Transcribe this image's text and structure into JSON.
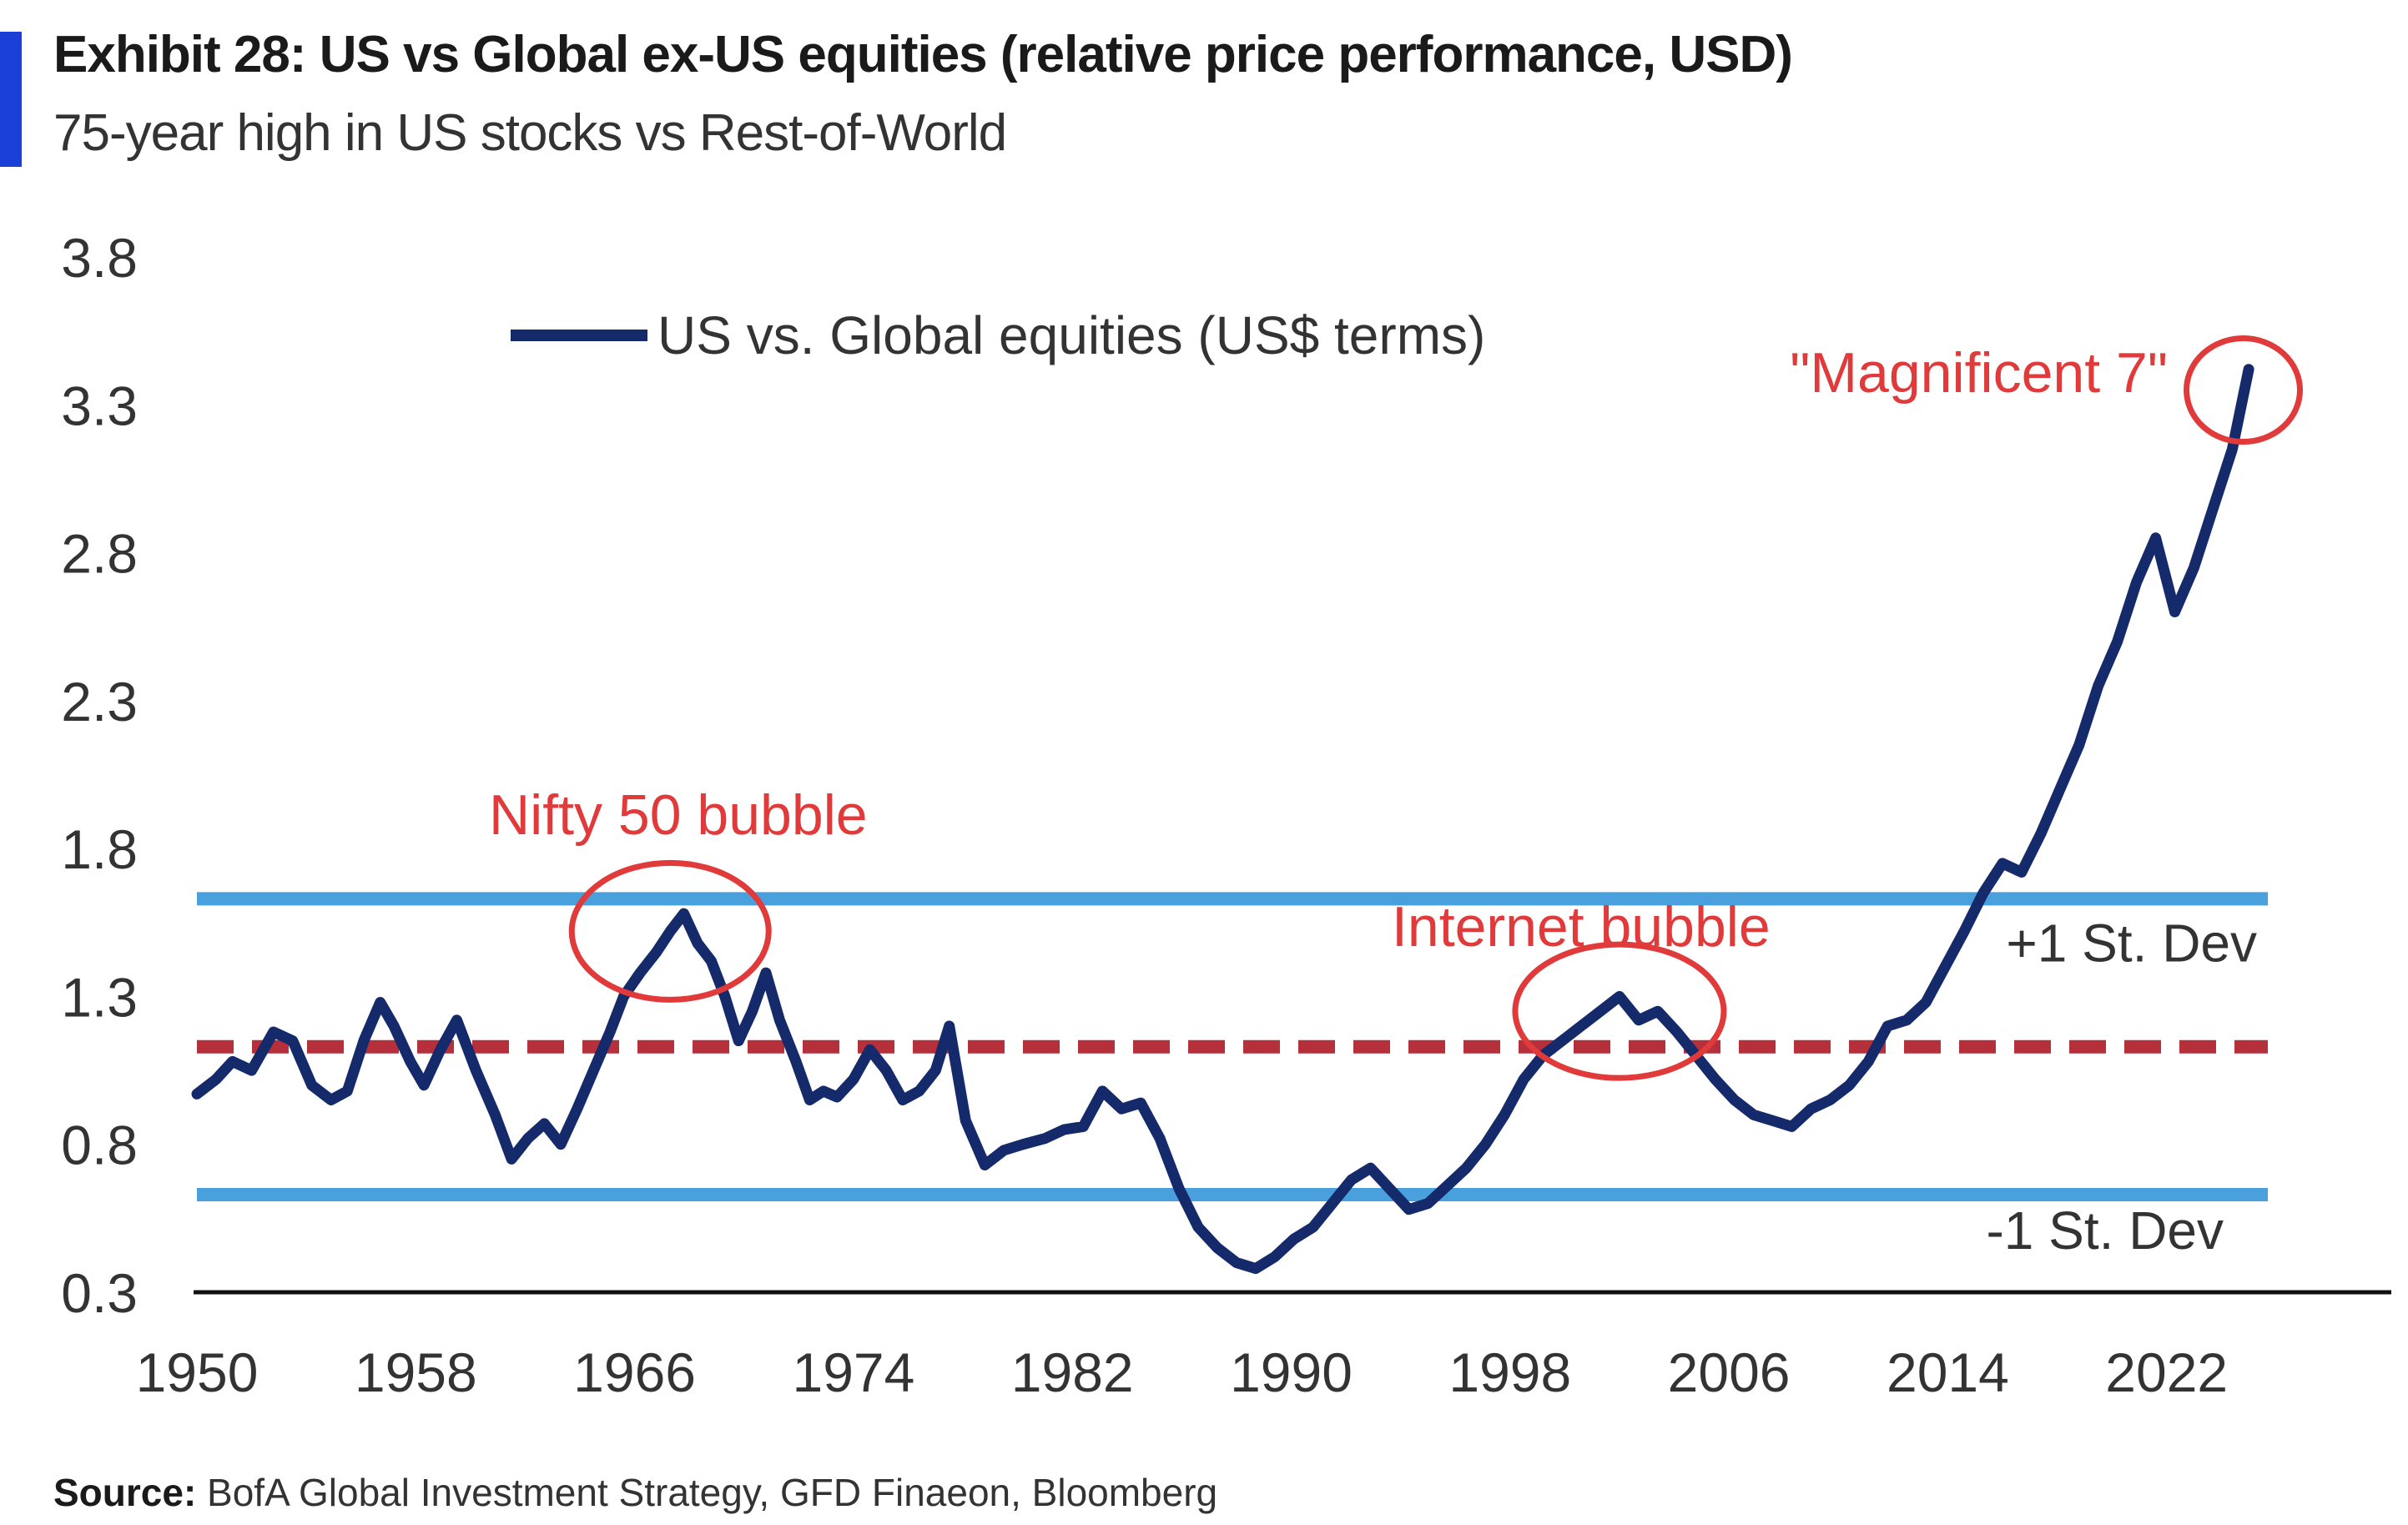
{
  "header": {
    "title": "Exhibit 28: US vs Global ex-US equities (relative price performance, USD)",
    "subtitle": "75-year high in US stocks vs Rest-of-World"
  },
  "footer": {
    "source_label": "Source:",
    "source_text": " BofA Global Investment Strategy, GFD Finaeon, Bloomberg"
  },
  "colors": {
    "series": "#152a6b",
    "band": "#4aa0dc",
    "mean": "#b5303a",
    "annotation": "#e03a3a",
    "axis": "#111111"
  },
  "chart_data": {
    "type": "line",
    "xlim": [
      1950,
      2030
    ],
    "ylim": [
      0.3,
      3.8
    ],
    "x_ticks": [
      1950,
      1958,
      1966,
      1974,
      1982,
      1990,
      1998,
      2006,
      2014,
      2022
    ],
    "y_ticks": [
      0.3,
      0.8,
      1.3,
      1.8,
      2.3,
      2.8,
      3.3,
      3.8
    ],
    "y_tick_labels": [
      "0.3",
      "0.8",
      "1.3",
      "1.8",
      "2.3",
      "2.8",
      "3.3",
      "3.8"
    ],
    "legend": {
      "position": "top-left",
      "label": "US vs. Global equities (US$ terms)"
    },
    "reference_lines": [
      {
        "label": "+1 St. Dev",
        "y": 1.63,
        "style": "solid"
      },
      {
        "label": "",
        "y": 1.13,
        "style": "dashed"
      },
      {
        "label": "-1 St. Dev",
        "y": 0.63,
        "style": "solid"
      }
    ],
    "series": [
      {
        "name": "US vs. Global equities (US$ terms)",
        "x": [
          1950.0,
          1950.7,
          1951.3,
          1952.0,
          1952.8,
          1953.5,
          1954.2,
          1954.9,
          1955.5,
          1956.1,
          1956.7,
          1957.2,
          1957.8,
          1958.3,
          1958.9,
          1959.5,
          1960.2,
          1960.9,
          1961.5,
          1962.1,
          1962.7,
          1963.3,
          1963.9,
          1964.5,
          1965.1,
          1965.6,
          1966.2,
          1966.8,
          1967.3,
          1967.8,
          1968.3,
          1968.8,
          1969.3,
          1969.8,
          1970.3,
          1970.8,
          1971.3,
          1971.9,
          1972.4,
          1972.9,
          1973.4,
          1974.0,
          1974.6,
          1975.2,
          1975.8,
          1976.4,
          1977.0,
          1977.5,
          1978.1,
          1978.8,
          1979.5,
          1980.2,
          1981.0,
          1981.7,
          1982.4,
          1983.1,
          1983.8,
          1984.5,
          1985.2,
          1985.9,
          1986.6,
          1987.3,
          1988.0,
          1988.7,
          1989.4,
          1990.1,
          1990.8,
          1991.5,
          1992.2,
          1992.9,
          1993.6,
          1994.3,
          1995.0,
          1995.7,
          1996.4,
          1997.1,
          1997.8,
          1998.5,
          1999.2,
          1999.9,
          2000.6,
          2001.3,
          2002.0,
          2002.7,
          2003.4,
          2004.1,
          2004.8,
          2005.5,
          2006.2,
          2006.9,
          2007.6,
          2008.3,
          2009.0,
          2009.7,
          2010.4,
          2011.1,
          2011.8,
          2012.5,
          2013.2,
          2013.9,
          2014.6,
          2015.3,
          2016.0,
          2016.7,
          2017.4,
          2018.1,
          2018.8,
          2019.5,
          2020.2,
          2020.9,
          2021.6,
          2022.3,
          2023.0,
          2023.7,
          2024.4,
          2025.0
        ],
        "y": [
          0.97,
          1.02,
          1.08,
          1.05,
          1.18,
          1.15,
          1.0,
          0.95,
          0.98,
          1.15,
          1.28,
          1.2,
          1.08,
          1.0,
          1.12,
          1.22,
          1.05,
          0.9,
          0.75,
          0.82,
          0.87,
          0.8,
          0.92,
          1.05,
          1.18,
          1.3,
          1.38,
          1.45,
          1.52,
          1.58,
          1.48,
          1.42,
          1.3,
          1.15,
          1.25,
          1.38,
          1.22,
          1.08,
          0.95,
          0.98,
          0.96,
          1.02,
          1.12,
          1.05,
          0.95,
          0.98,
          1.05,
          1.2,
          0.88,
          0.73,
          0.78,
          0.8,
          0.82,
          0.85,
          0.86,
          0.98,
          0.92,
          0.94,
          0.82,
          0.65,
          0.52,
          0.45,
          0.4,
          0.38,
          0.42,
          0.48,
          0.52,
          0.6,
          0.68,
          0.72,
          0.65,
          0.58,
          0.6,
          0.66,
          0.72,
          0.8,
          0.9,
          1.02,
          1.1,
          1.15,
          1.2,
          1.25,
          1.3,
          1.22,
          1.25,
          1.18,
          1.1,
          1.02,
          0.95,
          0.9,
          0.88,
          0.86,
          0.92,
          0.95,
          1.0,
          1.08,
          1.2,
          1.22,
          1.28,
          1.4,
          1.52,
          1.65,
          1.75,
          1.72,
          1.85,
          2.0,
          2.15,
          2.35,
          2.5,
          2.7,
          2.85,
          2.6,
          2.75,
          2.95,
          3.15,
          3.42
        ]
      }
    ],
    "annotations": [
      {
        "text": "Nifty 50 bubble",
        "x": 1967.3,
        "y": 1.52
      },
      {
        "text": "Internet bubble",
        "x": 2002.0,
        "y": 1.25
      },
      {
        "text": "\"Magnificent 7\"",
        "x": 2024.8,
        "y": 3.35
      }
    ]
  }
}
